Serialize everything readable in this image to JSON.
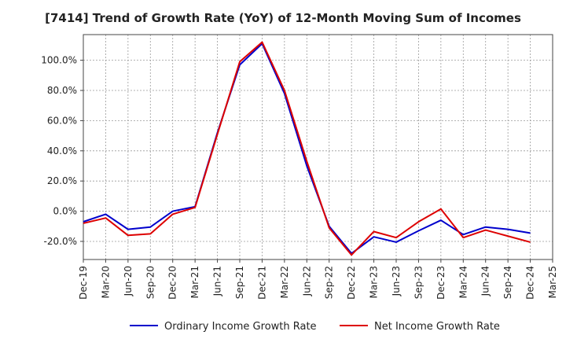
{
  "chart_data": {
    "type": "line",
    "title": "[7414]  Trend of Growth Rate (YoY) of 12-Month Moving Sum of Incomes",
    "xlabel": "",
    "ylabel": "",
    "ylim": [
      -32,
      117
    ],
    "yticks": [
      -20,
      0,
      20,
      40,
      60,
      80,
      100
    ],
    "ytick_labels": [
      "-20.0%",
      "0.0%",
      "20.0%",
      "40.0%",
      "60.0%",
      "80.0%",
      "100.0%"
    ],
    "xtick_labels": [
      "Dec-19",
      "Mar-20",
      "Jun-20",
      "Sep-20",
      "Dec-20",
      "Mar-21",
      "Jun-21",
      "Sep-21",
      "Dec-21",
      "Mar-22",
      "Jun-22",
      "Sep-22",
      "Dec-22",
      "Mar-23",
      "Jun-23",
      "Sep-23",
      "Dec-23",
      "Mar-24",
      "Jun-24",
      "Sep-24",
      "Dec-24",
      "Mar-25"
    ],
    "grid": true,
    "legend_position": "bottom",
    "series": [
      {
        "name": "Ordinary Income Growth Rate",
        "color": "#0000cc",
        "values": [
          -7,
          -2,
          -12,
          -10.5,
          0,
          3,
          52,
          97,
          111,
          78,
          30,
          -10,
          -28,
          -17,
          -20.5,
          -13,
          -6,
          -15.5,
          -10.5,
          -12,
          -14.5
        ]
      },
      {
        "name": "Net Income Growth Rate",
        "color": "#dd0000",
        "values": [
          -8,
          -4.5,
          -16,
          -15,
          -2,
          2.5,
          51,
          99,
          112,
          80,
          33,
          -11,
          -29,
          -13.5,
          -17.5,
          -7,
          1.5,
          -17.5,
          -12.5,
          -16.5,
          -20.5
        ]
      }
    ]
  }
}
